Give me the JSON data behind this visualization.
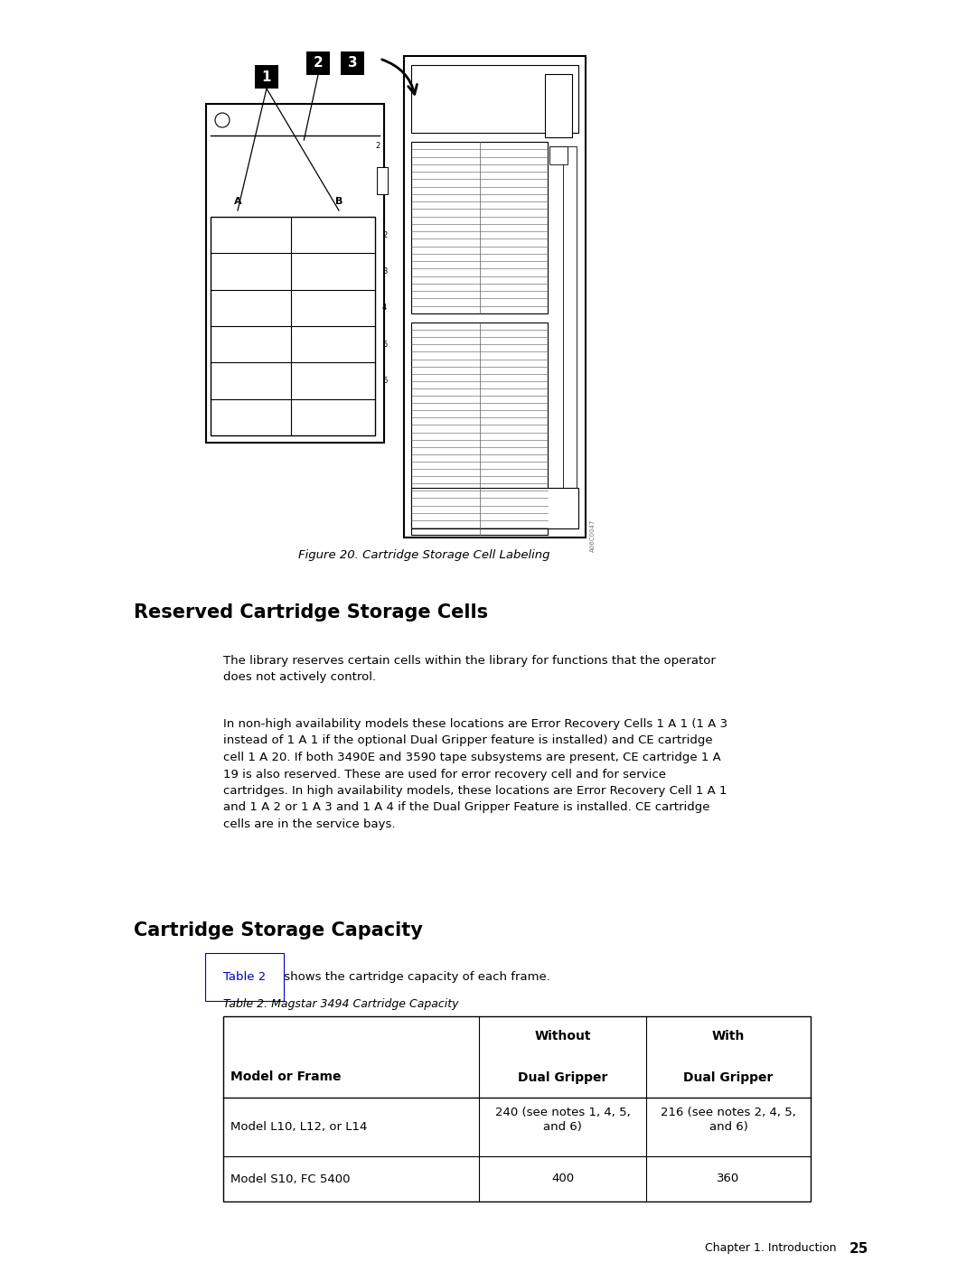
{
  "bg_color": "#ffffff",
  "fig_width": 10.8,
  "fig_height": 13.97,
  "dpi": 100,
  "figure_caption": "Figure 20. Cartridge Storage Cell Labeling",
  "section1_heading": "Reserved Cartridge Storage Cells",
  "para1_text": "The library reserves certain cells within the library for functions that the operator\ndoes not actively control.",
  "para2_text": "In non-high availability models these locations are Error Recovery Cells 1 A 1 (1 A 3\ninstead of 1 A 1 if the optional Dual Gripper feature is installed) and CE cartridge\ncell 1 A 20. If both 3490E and 3590 tape subsystems are present, CE cartridge 1 A\n19 is also reserved. These are used for error recovery cell and for service\ncartridges. In high availability models, these locations are Error Recovery Cell 1 A 1\nand 1 A 2 or 1 A 3 and 1 A 4 if the Dual Gripper Feature is installed. CE cartridge\ncells are in the service bays.",
  "section2_heading": "Cartridge Storage Capacity",
  "link_text": "Table 2",
  "link_suffix": " shows the cartridge capacity of each frame.",
  "table_caption": "Table 2. Magstar 3494 Cartridge Capacity",
  "footer_text": "Chapter 1. Introduction",
  "footer_page": "25"
}
